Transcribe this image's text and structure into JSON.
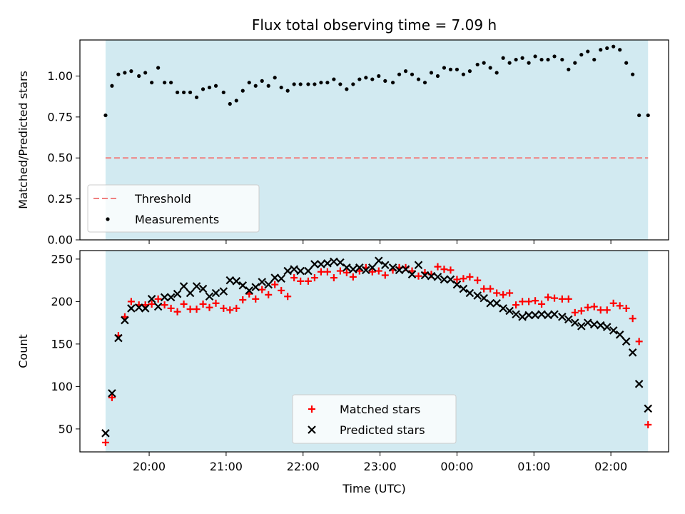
{
  "chart_data": [
    {
      "type": "scatter",
      "title": "Flux total observing time = 7.09 h",
      "ylabel": "Matched/Predicted stars",
      "ylim": [
        0,
        1.22
      ],
      "y_ticks": [
        0.0,
        0.25,
        0.5,
        0.75,
        1.0
      ],
      "y_tick_labels": [
        "0.00",
        "0.25",
        "0.50",
        "0.75",
        "1.00"
      ],
      "xlim": [
        "19:06",
        "02:45"
      ],
      "x_ticks": [
        "20:00",
        "21:00",
        "22:00",
        "23:00",
        "00:00",
        "01:00",
        "02:00"
      ],
      "shaded_span": [
        "19:26",
        "02:29"
      ],
      "shade_color": "#add8e6",
      "threshold": {
        "name": "Threshold",
        "value": 0.5,
        "color": "#f08080",
        "style": "dashed"
      },
      "legend": {
        "placement": "lower-left",
        "entries": [
          "Threshold",
          "Measurements"
        ]
      },
      "series": [
        {
          "name": "Measurements",
          "color": "#000000",
          "marker": "dot",
          "x": [
            "19:26",
            "19:31",
            "19:36",
            "19:41",
            "19:46",
            "19:52",
            "19:57",
            "20:02",
            "20:07",
            "20:12",
            "20:17",
            "20:22",
            "20:27",
            "20:32",
            "20:37",
            "20:42",
            "20:47",
            "20:52",
            "20:58",
            "21:03",
            "21:08",
            "21:13",
            "21:18",
            "21:23",
            "21:28",
            "21:33",
            "21:38",
            "21:43",
            "21:48",
            "21:53",
            "21:58",
            "22:04",
            "22:09",
            "22:14",
            "22:19",
            "22:24",
            "22:29",
            "22:34",
            "22:39",
            "22:44",
            "22:49",
            "22:54",
            "22:59",
            "23:04",
            "23:10",
            "23:15",
            "23:20",
            "23:25",
            "23:30",
            "23:35",
            "23:40",
            "23:45",
            "23:50",
            "23:55",
            "00:00",
            "00:05",
            "00:10",
            "00:16",
            "00:21",
            "00:26",
            "00:31",
            "00:36",
            "00:41",
            "00:46",
            "00:51",
            "00:56",
            "01:01",
            "01:06",
            "01:11",
            "01:16",
            "01:22",
            "01:27",
            "01:32",
            "01:37",
            "01:42",
            "01:47",
            "01:52",
            "01:57",
            "02:02",
            "02:07",
            "02:12",
            "02:17",
            "02:22",
            "02:29"
          ],
          "y": [
            0.76,
            0.94,
            1.01,
            1.02,
            1.03,
            1.0,
            1.02,
            0.96,
            1.05,
            0.96,
            0.96,
            0.9,
            0.9,
            0.9,
            0.87,
            0.92,
            0.93,
            0.94,
            0.9,
            0.83,
            0.85,
            0.91,
            0.96,
            0.94,
            0.97,
            0.94,
            0.99,
            0.93,
            0.91,
            0.95,
            0.95,
            0.95,
            0.95,
            0.96,
            0.96,
            0.98,
            0.95,
            0.92,
            0.95,
            0.98,
            0.99,
            0.98,
            1.0,
            0.97,
            0.96,
            1.01,
            1.03,
            1.01,
            0.98,
            0.96,
            1.02,
            1.0,
            1.05,
            1.04,
            1.04,
            1.01,
            1.03,
            1.07,
            1.08,
            1.05,
            1.02,
            1.11,
            1.08,
            1.1,
            1.11,
            1.08,
            1.12,
            1.1,
            1.1,
            1.12,
            1.1,
            1.04,
            1.08,
            1.13,
            1.15,
            1.1,
            1.16,
            1.17,
            1.18,
            1.16,
            1.08,
            1.01,
            0.76,
            0.76
          ]
        }
      ]
    },
    {
      "type": "scatter",
      "xlabel": "Time (UTC)",
      "ylabel": "Count",
      "ylim": [
        23,
        260
      ],
      "y_ticks": [
        50,
        100,
        150,
        200,
        250
      ],
      "y_tick_labels": [
        "50",
        "100",
        "150",
        "200",
        "250"
      ],
      "xlim": [
        "19:06",
        "02:45"
      ],
      "x_ticks": [
        "20:00",
        "21:00",
        "22:00",
        "23:00",
        "00:00",
        "01:00",
        "02:00"
      ],
      "x_tick_labels": [
        "20:00",
        "21:00",
        "22:00",
        "23:00",
        "00:00",
        "01:00",
        "02:00"
      ],
      "shaded_span": [
        "19:26",
        "02:29"
      ],
      "shade_color": "#add8e6",
      "legend": {
        "placement": "lower-center",
        "entries": [
          "Matched stars",
          "Predicted stars"
        ]
      },
      "series": [
        {
          "name": "Matched stars",
          "color": "#ff0000",
          "marker": "plus",
          "x": [
            "19:26",
            "19:31",
            "19:36",
            "19:41",
            "19:46",
            "19:52",
            "19:57",
            "20:02",
            "20:07",
            "20:12",
            "20:17",
            "20:22",
            "20:27",
            "20:32",
            "20:37",
            "20:42",
            "20:47",
            "20:52",
            "20:58",
            "21:03",
            "21:08",
            "21:13",
            "21:18",
            "21:23",
            "21:28",
            "21:33",
            "21:38",
            "21:43",
            "21:48",
            "21:53",
            "21:58",
            "22:04",
            "22:09",
            "22:14",
            "22:19",
            "22:24",
            "22:29",
            "22:34",
            "22:39",
            "22:44",
            "22:49",
            "22:54",
            "22:59",
            "23:04",
            "23:10",
            "23:15",
            "23:20",
            "23:25",
            "23:30",
            "23:35",
            "23:40",
            "23:45",
            "23:50",
            "23:55",
            "00:00",
            "00:05",
            "00:10",
            "00:16",
            "00:21",
            "00:26",
            "00:31",
            "00:36",
            "00:41",
            "00:46",
            "00:51",
            "00:56",
            "01:01",
            "01:06",
            "01:11",
            "01:16",
            "01:22",
            "01:27",
            "01:32",
            "01:37",
            "01:42",
            "01:47",
            "01:52",
            "01:57",
            "02:02",
            "02:07",
            "02:12",
            "02:17",
            "02:22",
            "02:29"
          ],
          "y": [
            34,
            87,
            160,
            182,
            200,
            196,
            196,
            197,
            203,
            196,
            192,
            188,
            197,
            191,
            191,
            197,
            193,
            198,
            192,
            190,
            192,
            202,
            209,
            203,
            214,
            208,
            220,
            213,
            206,
            228,
            224,
            224,
            228,
            235,
            235,
            228,
            236,
            234,
            229,
            236,
            240,
            235,
            236,
            231,
            237,
            240,
            240,
            236,
            230,
            234,
            232,
            241,
            238,
            237,
            226,
            227,
            229,
            225,
            215,
            215,
            210,
            208,
            210,
            196,
            200,
            200,
            201,
            197,
            205,
            204,
            203,
            203,
            187,
            189,
            193,
            194,
            190,
            190,
            198,
            195,
            192,
            180,
            153,
            55
          ]
        },
        {
          "name": "Predicted stars",
          "color": "#000000",
          "marker": "x",
          "x": [
            "19:26",
            "19:31",
            "19:36",
            "19:41",
            "19:46",
            "19:52",
            "19:57",
            "20:02",
            "20:07",
            "20:12",
            "20:17",
            "20:22",
            "20:27",
            "20:32",
            "20:37",
            "20:42",
            "20:47",
            "20:52",
            "20:58",
            "21:03",
            "21:08",
            "21:13",
            "21:18",
            "21:23",
            "21:28",
            "21:33",
            "21:38",
            "21:43",
            "21:48",
            "21:53",
            "21:58",
            "22:04",
            "22:09",
            "22:14",
            "22:19",
            "22:24",
            "22:29",
            "22:34",
            "22:39",
            "22:44",
            "22:49",
            "22:54",
            "22:59",
            "23:04",
            "23:10",
            "23:15",
            "23:20",
            "23:25",
            "23:30",
            "23:35",
            "23:40",
            "23:45",
            "23:50",
            "23:55",
            "00:00",
            "00:05",
            "00:10",
            "00:16",
            "00:21",
            "00:26",
            "00:31",
            "00:36",
            "00:41",
            "00:46",
            "00:51",
            "00:56",
            "01:01",
            "01:06",
            "01:11",
            "01:16",
            "01:22",
            "01:27",
            "01:32",
            "01:37",
            "01:42",
            "01:47",
            "01:52",
            "01:57",
            "02:02",
            "02:07",
            "02:12",
            "02:17",
            "02:22",
            "02:29"
          ],
          "y": [
            45,
            92,
            157,
            178,
            192,
            193,
            192,
            203,
            194,
            205,
            205,
            209,
            218,
            210,
            218,
            215,
            206,
            210,
            212,
            225,
            224,
            219,
            213,
            217,
            223,
            220,
            228,
            227,
            236,
            238,
            236,
            236,
            244,
            244,
            245,
            247,
            246,
            240,
            238,
            240,
            237,
            240,
            248,
            243,
            240,
            237,
            238,
            232,
            243,
            231,
            230,
            229,
            226,
            226,
            220,
            215,
            210,
            207,
            204,
            198,
            198,
            192,
            189,
            185,
            182,
            184,
            184,
            185,
            184,
            185,
            182,
            179,
            175,
            171,
            175,
            173,
            172,
            170,
            166,
            161,
            153,
            140,
            103,
            74
          ]
        }
      ]
    }
  ]
}
